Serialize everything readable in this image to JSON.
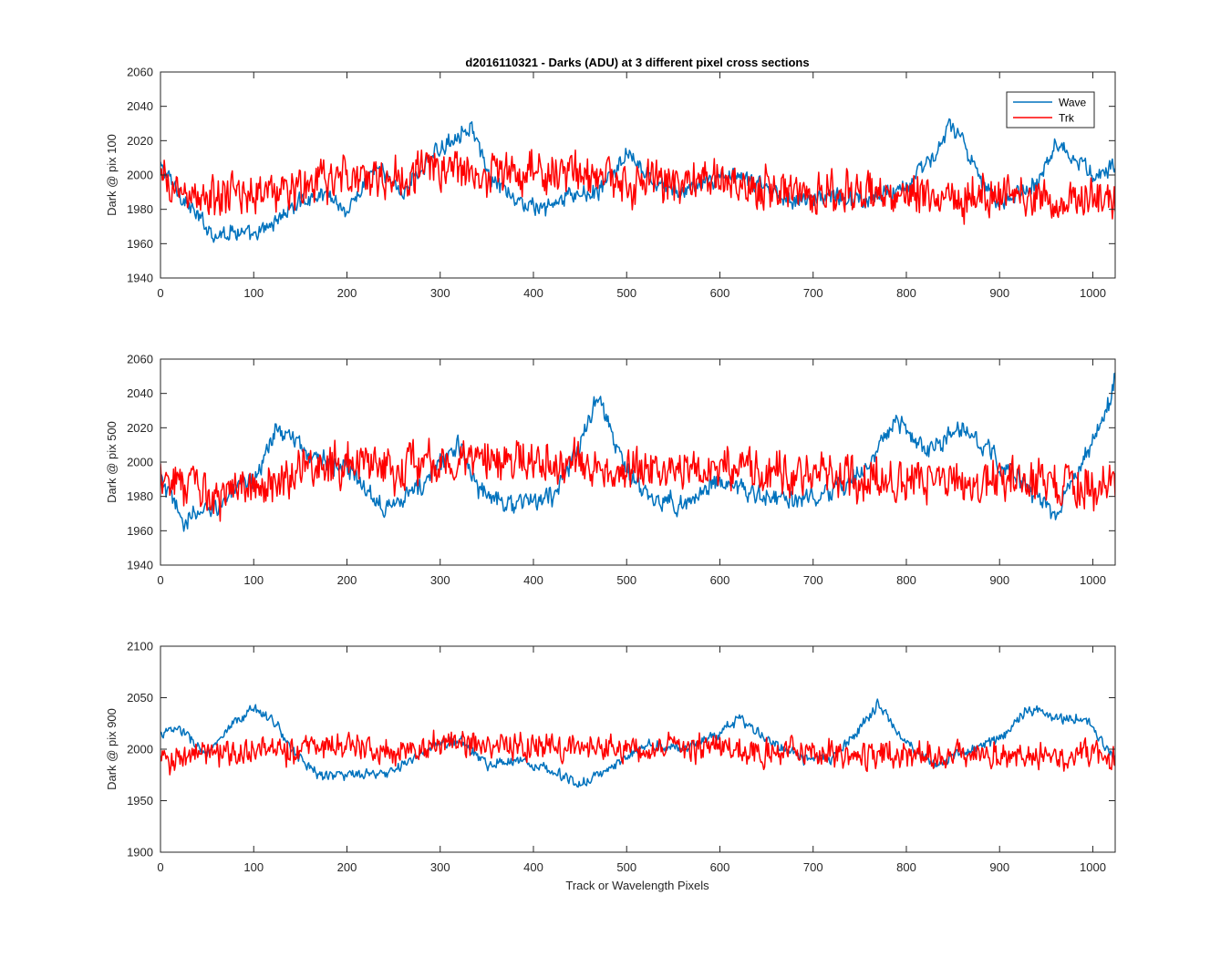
{
  "figure": {
    "title": "d2016110321 - Darks (ADU) at 3 different pixel cross sections",
    "xlabel": "Track or Wavelength Pixels"
  },
  "legend": {
    "placement": "top-right of first panel",
    "entries": [
      {
        "label": "Wave",
        "color": "#0072BD"
      },
      {
        "label": "Trk",
        "color": "#FF0000"
      }
    ]
  },
  "chart_data": [
    {
      "type": "line",
      "ylabel": "Dark @ pix 100",
      "xlim": [
        0,
        1024
      ],
      "ylim": [
        1940,
        2060
      ],
      "xticks": [
        0,
        100,
        200,
        300,
        400,
        500,
        600,
        700,
        800,
        900,
        1000
      ],
      "yticks": [
        1940,
        1960,
        1980,
        2000,
        2020,
        2040,
        2060
      ],
      "grid": false,
      "series": [
        {
          "name": "Wave",
          "color": "#0072BD",
          "noise": 6,
          "x": [
            0,
            20,
            40,
            60,
            80,
            100,
            120,
            150,
            180,
            200,
            230,
            260,
            290,
            320,
            335,
            350,
            380,
            410,
            440,
            470,
            500,
            530,
            560,
            600,
            640,
            680,
            720,
            760,
            800,
            830,
            845,
            860,
            880,
            900,
            920,
            940,
            960,
            980,
            1000,
            1024
          ],
          "y": [
            2005,
            1990,
            1975,
            1965,
            1968,
            1963,
            1972,
            1985,
            1990,
            1978,
            2005,
            1990,
            2010,
            2025,
            2028,
            2000,
            1985,
            1980,
            1988,
            1990,
            2012,
            1995,
            1990,
            2000,
            1995,
            1985,
            1988,
            1985,
            1995,
            2010,
            2030,
            2020,
            1995,
            1985,
            1990,
            1995,
            2020,
            2010,
            2000,
            2005
          ]
        },
        {
          "name": "Trk",
          "color": "#FF0000",
          "noise": 15,
          "x": [
            0,
            50,
            100,
            150,
            200,
            250,
            300,
            350,
            400,
            450,
            500,
            550,
            600,
            650,
            700,
            750,
            800,
            850,
            900,
            950,
            1000,
            1024
          ],
          "y": [
            1995,
            1985,
            1990,
            1992,
            2000,
            1998,
            2005,
            2000,
            2002,
            2000,
            1995,
            1995,
            1998,
            1992,
            1990,
            1988,
            1990,
            1988,
            1990,
            1988,
            1985,
            1985
          ]
        }
      ]
    },
    {
      "type": "line",
      "ylabel": "Dark @ pix 500",
      "xlim": [
        0,
        1024
      ],
      "ylim": [
        1940,
        2060
      ],
      "xticks": [
        0,
        100,
        200,
        300,
        400,
        500,
        600,
        700,
        800,
        900,
        1000
      ],
      "yticks": [
        1940,
        1960,
        1980,
        2000,
        2020,
        2040,
        2060
      ],
      "grid": false,
      "series": [
        {
          "name": "Wave",
          "color": "#0072BD",
          "noise": 7,
          "x": [
            0,
            25,
            60,
            100,
            125,
            160,
            200,
            240,
            280,
            300,
            320,
            340,
            380,
            420,
            450,
            470,
            490,
            520,
            560,
            600,
            640,
            680,
            720,
            760,
            790,
            820,
            860,
            880,
            920,
            960,
            1000,
            1015,
            1024
          ],
          "y": [
            1990,
            1965,
            1975,
            1990,
            2020,
            2005,
            1995,
            1975,
            1985,
            2000,
            2010,
            1985,
            1975,
            1980,
            2010,
            2040,
            2005,
            1980,
            1975,
            1990,
            1980,
            1978,
            1980,
            2000,
            2025,
            2005,
            2020,
            2010,
            1990,
            1970,
            2010,
            2030,
            2050
          ]
        },
        {
          "name": "Trk",
          "color": "#FF0000",
          "noise": 15,
          "x": [
            0,
            50,
            100,
            150,
            200,
            250,
            300,
            350,
            400,
            450,
            500,
            550,
            600,
            650,
            700,
            750,
            800,
            850,
            900,
            950,
            1000,
            1024
          ],
          "y": [
            1995,
            1980,
            1985,
            1995,
            2000,
            1998,
            2000,
            2000,
            2000,
            1998,
            1995,
            1995,
            1998,
            1995,
            1992,
            1990,
            1990,
            1992,
            1990,
            1988,
            1988,
            1985
          ]
        }
      ]
    },
    {
      "type": "line",
      "ylabel": "Dark @ pix 900",
      "xlim": [
        0,
        1024
      ],
      "ylim": [
        1900,
        2100
      ],
      "xticks": [
        0,
        100,
        200,
        300,
        400,
        500,
        600,
        700,
        800,
        900,
        1000
      ],
      "yticks": [
        1900,
        1950,
        2000,
        2050,
        2100
      ],
      "grid": false,
      "series": [
        {
          "name": "Wave",
          "color": "#0072BD",
          "noise": 6,
          "x": [
            0,
            20,
            50,
            80,
            100,
            120,
            140,
            170,
            200,
            240,
            280,
            300,
            320,
            350,
            380,
            420,
            450,
            480,
            520,
            560,
            600,
            620,
            650,
            690,
            720,
            750,
            770,
            800,
            830,
            870,
            900,
            930,
            960,
            990,
            1024
          ],
          "y": [
            2015,
            2020,
            1995,
            2025,
            2040,
            2030,
            2000,
            1975,
            1975,
            1975,
            1995,
            2005,
            2010,
            1985,
            1990,
            1980,
            1965,
            1980,
            2005,
            2000,
            2015,
            2030,
            2010,
            1990,
            1990,
            2020,
            2045,
            2005,
            1985,
            2000,
            2010,
            2040,
            2030,
            2030,
            1990
          ]
        },
        {
          "name": "Trk",
          "color": "#FF0000",
          "noise": 16,
          "x": [
            0,
            50,
            100,
            150,
            200,
            250,
            300,
            350,
            400,
            450,
            500,
            550,
            600,
            650,
            700,
            750,
            800,
            850,
            900,
            950,
            1000,
            1024
          ],
          "y": [
            1990,
            1995,
            1998,
            2000,
            2005,
            2000,
            2005,
            2005,
            2002,
            2002,
            2000,
            2000,
            2000,
            1998,
            1995,
            1995,
            1995,
            1995,
            1995,
            1995,
            1992,
            1990
          ]
        }
      ]
    }
  ]
}
